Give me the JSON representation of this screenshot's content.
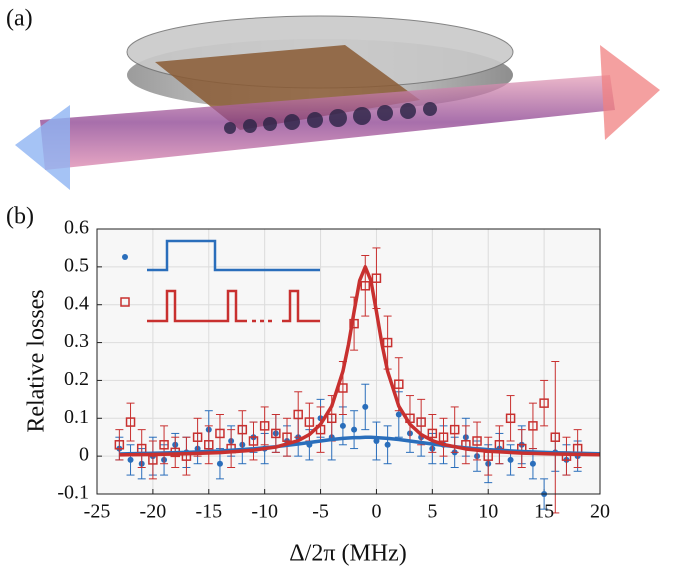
{
  "panel_labels": {
    "a": "(a)",
    "b": "(b)"
  },
  "chart_data": {
    "type": "scatter",
    "xlabel": "Δ/2π (MHz)",
    "ylabel": "Relative losses",
    "xlim": [
      -25,
      20
    ],
    "ylim": [
      -0.1,
      0.6
    ],
    "xticks": [
      -25,
      -20,
      -15,
      -10,
      -5,
      0,
      5,
      10,
      15,
      20
    ],
    "yticks": [
      -0.1,
      0,
      0.1,
      0.2,
      0.3,
      0.4,
      0.5,
      0.6
    ],
    "grid": true,
    "series": [
      {
        "type": "scatter",
        "marker": "circle",
        "color": "#2a6ebb",
        "x": [
          -23,
          -22,
          -21,
          -20,
          -19,
          -18,
          -17,
          -16,
          -15,
          -14,
          -13,
          -12,
          -11,
          -10,
          -9,
          -8,
          -7,
          -6,
          -5,
          -4,
          -3,
          -2,
          -1,
          0,
          1,
          2,
          3,
          4,
          5,
          6,
          7,
          8,
          9,
          10,
          11,
          12,
          13,
          14,
          15,
          16,
          17,
          18
        ],
        "values": [
          0.02,
          -0.01,
          -0.02,
          0.0,
          -0.01,
          0.03,
          0.01,
          0.02,
          0.07,
          -0.02,
          0.04,
          0.03,
          0.05,
          0.02,
          0.06,
          0.04,
          0.05,
          0.03,
          0.1,
          0.05,
          0.08,
          0.07,
          0.13,
          0.04,
          0.03,
          0.11,
          0.06,
          0.05,
          0.02,
          0.03,
          0.01,
          0.05,
          0.0,
          -0.02,
          0.02,
          -0.01,
          0.03,
          -0.02,
          -0.1,
          0.01,
          -0.01,
          0.0
        ],
        "errors": [
          0.03,
          0.04,
          0.04,
          0.05,
          0.04,
          0.03,
          0.04,
          0.04,
          0.05,
          0.04,
          0.04,
          0.05,
          0.04,
          0.04,
          0.05,
          0.04,
          0.05,
          0.04,
          0.05,
          0.06,
          0.05,
          0.05,
          0.06,
          0.05,
          0.05,
          0.06,
          0.05,
          0.05,
          0.04,
          0.05,
          0.04,
          0.05,
          0.04,
          0.05,
          0.04,
          0.04,
          0.05,
          0.04,
          0.04,
          0.05,
          0.04,
          0.04
        ]
      },
      {
        "type": "scatter",
        "marker": "square",
        "color": "#c8302f",
        "x": [
          -23,
          -22,
          -21,
          -20,
          -19,
          -18,
          -17,
          -16,
          -15,
          -14,
          -13,
          -12,
          -11,
          -10,
          -9,
          -8,
          -7,
          -6,
          -5,
          -4,
          -3,
          -2,
          -1,
          0,
          1,
          2,
          3,
          4,
          5,
          6,
          7,
          8,
          9,
          10,
          11,
          12,
          13,
          14,
          15,
          16,
          17,
          18
        ],
        "values": [
          0.03,
          0.09,
          0.02,
          -0.01,
          0.03,
          0.01,
          0.0,
          0.05,
          0.03,
          0.06,
          0.02,
          0.07,
          0.04,
          0.08,
          0.06,
          0.05,
          0.11,
          0.09,
          0.07,
          0.1,
          0.18,
          0.35,
          0.45,
          0.47,
          0.3,
          0.19,
          0.1,
          0.09,
          0.06,
          0.05,
          0.07,
          0.03,
          0.04,
          0.0,
          0.03,
          0.1,
          0.02,
          0.08,
          0.14,
          0.05,
          0.0,
          0.02
        ],
        "errors": [
          0.04,
          0.05,
          0.05,
          0.05,
          0.05,
          0.04,
          0.05,
          0.05,
          0.05,
          0.05,
          0.05,
          0.05,
          0.05,
          0.05,
          0.05,
          0.05,
          0.06,
          0.05,
          0.06,
          0.06,
          0.07,
          0.07,
          0.08,
          0.08,
          0.07,
          0.07,
          0.06,
          0.06,
          0.05,
          0.05,
          0.06,
          0.05,
          0.05,
          0.05,
          0.05,
          0.06,
          0.05,
          0.06,
          0.06,
          0.2,
          0.05,
          0.05
        ]
      },
      {
        "type": "line",
        "color": "#2a6ebb",
        "x": [
          -23,
          -20,
          -17,
          -14,
          -11,
          -9,
          -7,
          -6,
          -5,
          -4,
          -3,
          -2.5,
          -2,
          -1.5,
          -1,
          -0.5,
          0,
          0.5,
          1,
          2,
          3,
          4,
          5,
          6,
          8,
          10,
          13,
          16,
          20
        ],
        "values": [
          0.0058,
          0.0075,
          0.01,
          0.0137,
          0.0195,
          0.025,
          0.032,
          0.036,
          0.04,
          0.044,
          0.047,
          0.048,
          0.049,
          0.049,
          0.05,
          0.05,
          0.049,
          0.048,
          0.047,
          0.044,
          0.04,
          0.036,
          0.032,
          0.0283,
          0.022,
          0.0173,
          0.0123,
          0.0091,
          0.0063
        ]
      },
      {
        "type": "line",
        "color": "#c8302f",
        "x": [
          -23,
          -20,
          -17,
          -14,
          -11,
          -9,
          -7,
          -6,
          -5,
          -4,
          -3,
          -2.5,
          -2,
          -1.5,
          -1,
          -0.5,
          0,
          0.5,
          1,
          2,
          3,
          4,
          5,
          6,
          8,
          10,
          13,
          16,
          20
        ],
        "values": [
          0.0033,
          0.0045,
          0.0063,
          0.0094,
          0.0157,
          0.024,
          0.041,
          0.057,
          0.084,
          0.132,
          0.224,
          0.295,
          0.382,
          0.464,
          0.5,
          0.464,
          0.382,
          0.295,
          0.224,
          0.132,
          0.084,
          0.057,
          0.041,
          0.031,
          0.019,
          0.013,
          0.0081,
          0.0055,
          0.0036
        ]
      }
    ]
  }
}
